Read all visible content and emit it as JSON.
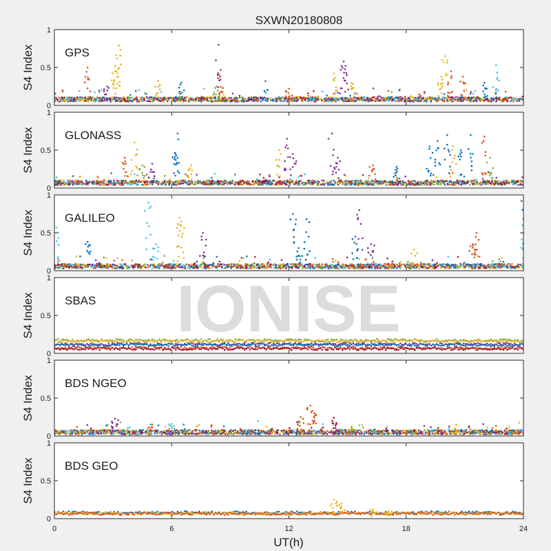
{
  "chart_data": {
    "type": "scatter",
    "title": "SXWN20180808",
    "xlabel": "UT(h)",
    "ylabel": "S4 Index",
    "xlim": [
      0,
      24
    ],
    "ylim": [
      0,
      1
    ],
    "xticks": [
      "0",
      "6",
      "12",
      "18",
      "24"
    ],
    "yticks": [
      "0",
      "0.5",
      "1"
    ],
    "watermark": "IONISE",
    "grid": false,
    "colors": [
      "#0072bd",
      "#d95319",
      "#edb120",
      "#7e2f8e",
      "#77ac30",
      "#4dbeee",
      "#a2142f"
    ],
    "panels": [
      {
        "label": "GPS",
        "baseline": 0.08,
        "spikes": [
          {
            "x": 1.7,
            "y": 0.5,
            "c": 1
          },
          {
            "x": 2.7,
            "y": 0.25,
            "c": 3
          },
          {
            "x": 3.1,
            "y": 0.45,
            "c": 2
          },
          {
            "x": 3.2,
            "y": 0.62,
            "c": 2
          },
          {
            "x": 3.3,
            "y": 0.79,
            "c": 2
          },
          {
            "x": 5.3,
            "y": 0.32,
            "c": 2
          },
          {
            "x": 6.5,
            "y": 0.3,
            "c": 0
          },
          {
            "x": 8.4,
            "y": 0.8,
            "c": 3
          },
          {
            "x": 8.45,
            "y": 0.4,
            "c": 1
          },
          {
            "x": 8.3,
            "y": 0.25,
            "c": 4
          },
          {
            "x": 10.8,
            "y": 0.32,
            "c": 0
          },
          {
            "x": 12.0,
            "y": 0.22,
            "c": 1
          },
          {
            "x": 14.3,
            "y": 0.42,
            "c": 2
          },
          {
            "x": 14.8,
            "y": 0.58,
            "c": 3
          },
          {
            "x": 14.9,
            "y": 0.52,
            "c": 3
          },
          {
            "x": 15.2,
            "y": 0.3,
            "c": 2
          },
          {
            "x": 19.8,
            "y": 0.38,
            "c": 2
          },
          {
            "x": 20.0,
            "y": 0.65,
            "c": 2
          },
          {
            "x": 20.3,
            "y": 0.45,
            "c": 1
          },
          {
            "x": 20.9,
            "y": 0.38,
            "c": 1
          },
          {
            "x": 22.0,
            "y": 0.3,
            "c": 0
          },
          {
            "x": 22.6,
            "y": 0.53,
            "c": 5
          }
        ]
      },
      {
        "label": "GLONASS",
        "baseline": 0.07,
        "spikes": [
          {
            "x": 3.6,
            "y": 0.4,
            "c": 1
          },
          {
            "x": 4.1,
            "y": 0.6,
            "c": 2
          },
          {
            "x": 4.5,
            "y": 0.3,
            "c": 4
          },
          {
            "x": 5.0,
            "y": 0.32,
            "c": 3
          },
          {
            "x": 6.3,
            "y": 0.72,
            "c": 0
          },
          {
            "x": 6.2,
            "y": 0.45,
            "c": 0
          },
          {
            "x": 7.0,
            "y": 0.3,
            "c": 2
          },
          {
            "x": 11.5,
            "y": 0.5,
            "c": 2
          },
          {
            "x": 11.9,
            "y": 0.65,
            "c": 3
          },
          {
            "x": 12.2,
            "y": 0.45,
            "c": 3
          },
          {
            "x": 14.2,
            "y": 0.72,
            "c": 3
          },
          {
            "x": 14.5,
            "y": 0.4,
            "c": 3
          },
          {
            "x": 16.3,
            "y": 0.3,
            "c": 1
          },
          {
            "x": 17.5,
            "y": 0.28,
            "c": 0
          },
          {
            "x": 19.2,
            "y": 0.55,
            "c": 0
          },
          {
            "x": 19.6,
            "y": 0.62,
            "c": 0
          },
          {
            "x": 20.1,
            "y": 0.7,
            "c": 0
          },
          {
            "x": 20.4,
            "y": 0.55,
            "c": 2
          },
          {
            "x": 20.8,
            "y": 0.5,
            "c": 0
          },
          {
            "x": 21.3,
            "y": 0.7,
            "c": 0
          },
          {
            "x": 22.0,
            "y": 0.68,
            "c": 1
          },
          {
            "x": 22.3,
            "y": 0.4,
            "c": 4
          }
        ]
      },
      {
        "label": "GALILEO",
        "baseline": 0.06,
        "spikes": [
          {
            "x": 0.1,
            "y": 0.57,
            "c": 5
          },
          {
            "x": 1.7,
            "y": 0.38,
            "c": 0
          },
          {
            "x": 4.8,
            "y": 0.9,
            "c": 5
          },
          {
            "x": 5.2,
            "y": 0.35,
            "c": 5
          },
          {
            "x": 6.4,
            "y": 0.7,
            "c": 2
          },
          {
            "x": 6.5,
            "y": 0.65,
            "c": 2
          },
          {
            "x": 7.6,
            "y": 0.5,
            "c": 3
          },
          {
            "x": 12.2,
            "y": 0.75,
            "c": 0
          },
          {
            "x": 12.5,
            "y": 0.3,
            "c": 0
          },
          {
            "x": 12.9,
            "y": 0.68,
            "c": 0
          },
          {
            "x": 15.6,
            "y": 0.8,
            "c": 3
          },
          {
            "x": 15.4,
            "y": 0.45,
            "c": 0
          },
          {
            "x": 16.2,
            "y": 0.35,
            "c": 3
          },
          {
            "x": 18.4,
            "y": 0.28,
            "c": 2
          },
          {
            "x": 21.6,
            "y": 0.5,
            "c": 1
          },
          {
            "x": 21.4,
            "y": 0.35,
            "c": 1
          },
          {
            "x": 23.9,
            "y": 0.92,
            "c": 0
          },
          {
            "x": 23.95,
            "y": 0.6,
            "c": 5
          }
        ]
      },
      {
        "label": "SBAS",
        "flat": true,
        "levels": [
          {
            "y": 0.17,
            "c": 4
          },
          {
            "y": 0.16,
            "c": 2
          },
          {
            "y": 0.12,
            "c": 3
          },
          {
            "y": 0.11,
            "c": 0
          },
          {
            "y": 0.07,
            "c": 1
          },
          {
            "y": 0.06,
            "c": 6
          }
        ],
        "spikes": []
      },
      {
        "label": "BDS NGEO",
        "baseline": 0.05,
        "spikes": [
          {
            "x": 3.1,
            "y": 0.23,
            "c": 3
          },
          {
            "x": 5.0,
            "y": 0.15,
            "c": 1
          },
          {
            "x": 6.0,
            "y": 0.16,
            "c": 5
          },
          {
            "x": 12.6,
            "y": 0.25,
            "c": 1
          },
          {
            "x": 13.1,
            "y": 0.4,
            "c": 1
          },
          {
            "x": 13.3,
            "y": 0.3,
            "c": 1
          },
          {
            "x": 14.3,
            "y": 0.24,
            "c": 6
          },
          {
            "x": 15.2,
            "y": 0.12,
            "c": 4
          },
          {
            "x": 20.5,
            "y": 0.1,
            "c": 2
          }
        ]
      },
      {
        "label": "BDS GEO",
        "flat": true,
        "levels": [
          {
            "y": 0.08,
            "c": 0
          },
          {
            "y": 0.07,
            "c": 2
          },
          {
            "y": 0.065,
            "c": 1
          }
        ],
        "spikes": [
          {
            "x": 14.3,
            "y": 0.25,
            "c": 2
          },
          {
            "x": 14.7,
            "y": 0.2,
            "c": 2
          },
          {
            "x": 16.3,
            "y": 0.12,
            "c": 2
          },
          {
            "x": 17.1,
            "y": 0.1,
            "c": 2
          }
        ]
      }
    ]
  }
}
